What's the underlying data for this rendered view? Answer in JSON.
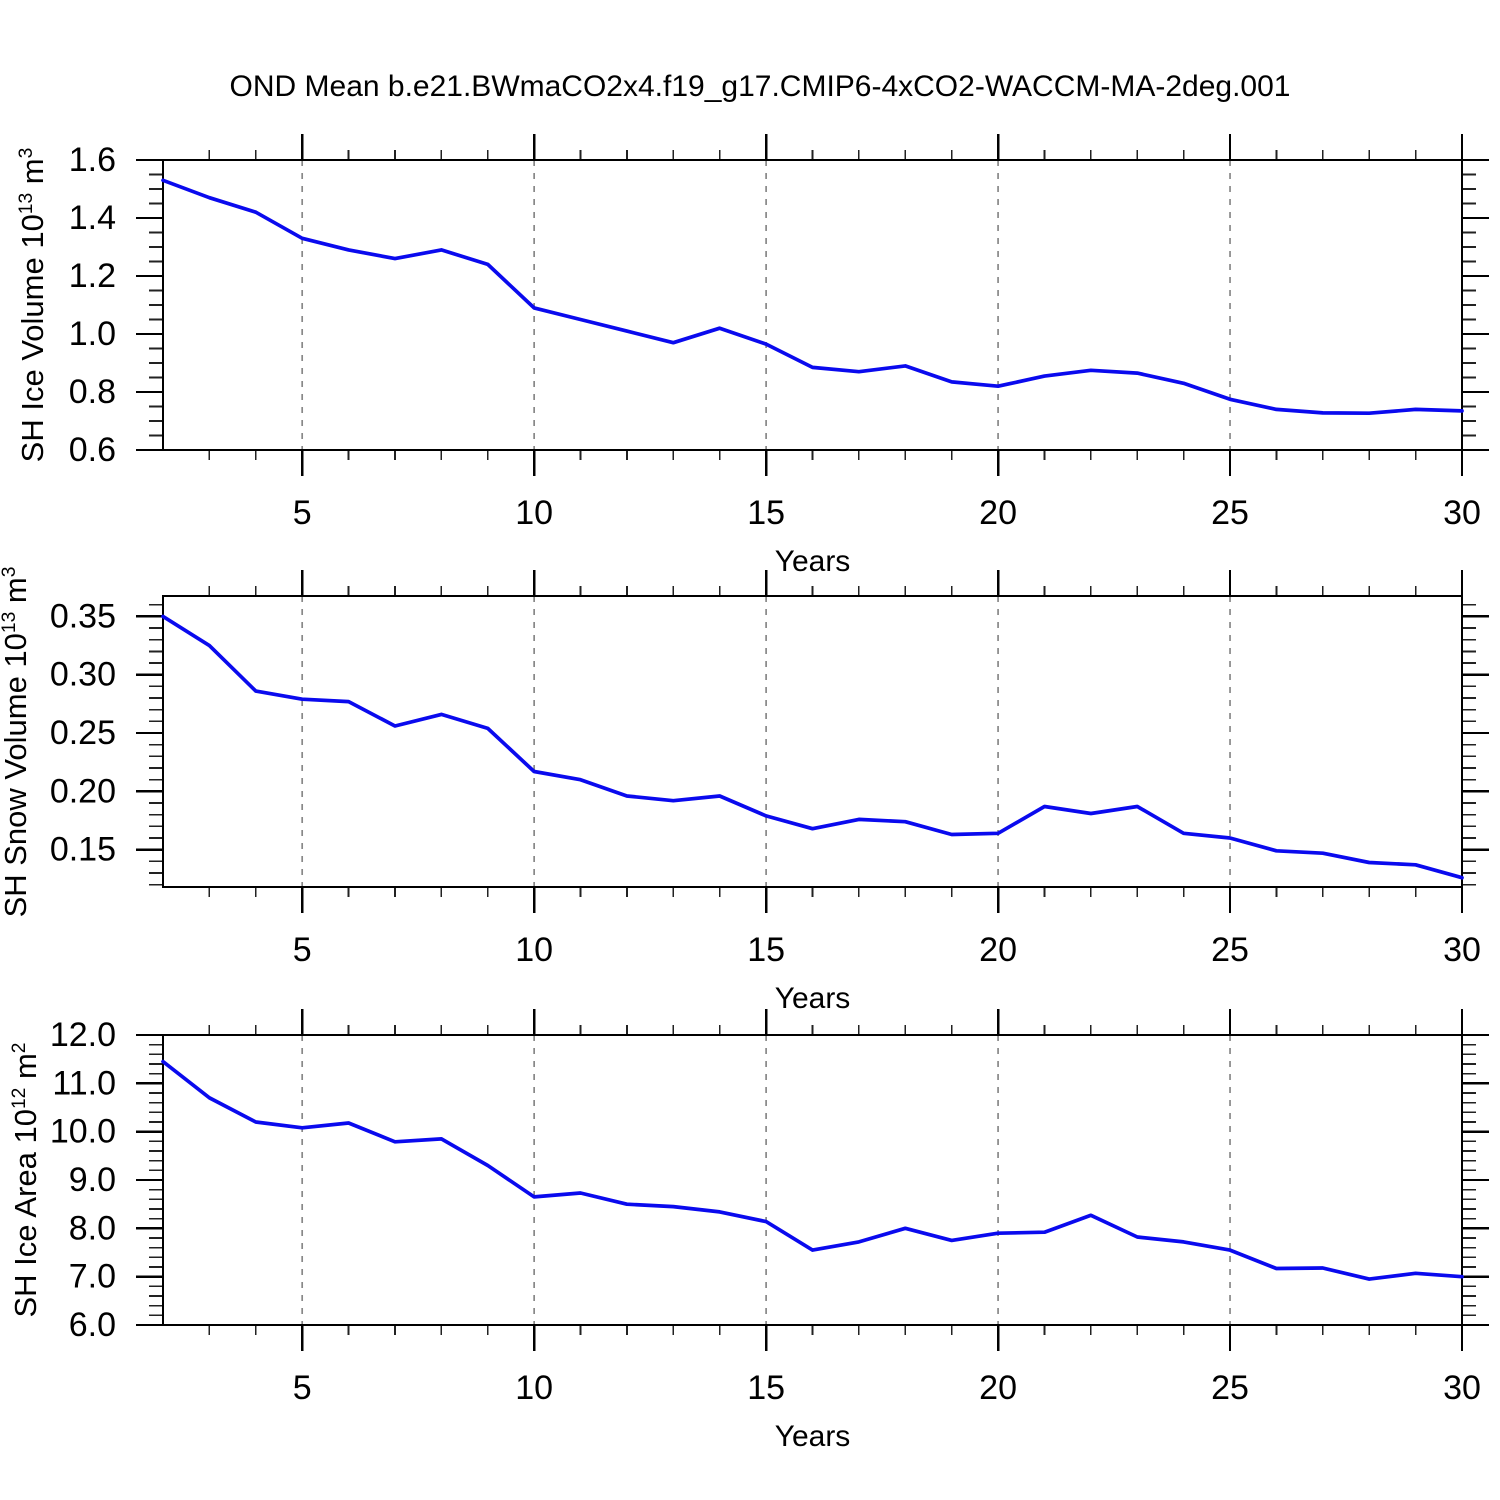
{
  "title": "OND Mean b.e21.BWmaCO2x4.f19_g17.CMIP6-4xCO2-WACCM-MA-2deg.001",
  "colors": {
    "line": "#0a0aee",
    "frame": "#000000",
    "grid": "#888888",
    "text": "#000000",
    "background": "#ffffff"
  },
  "chart_data": [
    {
      "type": "line",
      "panel": "sh-ice-volume",
      "ylabel": {
        "main": "SH Ice Volume 10",
        "exp": "13",
        "unit": " m",
        "unit_exp": "3"
      },
      "xlabel": "Years",
      "xlim": [
        2,
        30
      ],
      "xticks_major": [
        5,
        10,
        15,
        20,
        25,
        30
      ],
      "xminor_step": 1,
      "grid_x": [
        5,
        10,
        15,
        20,
        25
      ],
      "ylim": [
        0.6,
        1.6
      ],
      "yticks_major": [
        0.6,
        0.8,
        1.0,
        1.2,
        1.4,
        1.6
      ],
      "yminor_step": 0.05,
      "ytick_decimals": 1,
      "x": [
        2,
        3,
        4,
        5,
        6,
        7,
        8,
        9,
        10,
        11,
        12,
        13,
        14,
        15,
        16,
        17,
        18,
        19,
        20,
        21,
        22,
        23,
        24,
        25,
        26,
        27,
        28,
        29,
        30
      ],
      "values": [
        1.53,
        1.47,
        1.42,
        1.33,
        1.29,
        1.26,
        1.29,
        1.24,
        1.09,
        1.05,
        1.01,
        0.97,
        1.02,
        0.965,
        0.885,
        0.87,
        0.89,
        0.835,
        0.82,
        0.855,
        0.875,
        0.865,
        0.83,
        0.775,
        0.74,
        0.728,
        0.727,
        0.74,
        0.735
      ]
    },
    {
      "type": "line",
      "panel": "sh-snow-volume",
      "ylabel": {
        "main": "SH Snow Volume 10",
        "exp": "13",
        "unit": " m",
        "unit_exp": "3"
      },
      "xlabel": "Years",
      "xlim": [
        2,
        30
      ],
      "xticks_major": [
        5,
        10,
        15,
        20,
        25,
        30
      ],
      "xminor_step": 1,
      "grid_x": [
        5,
        10,
        15,
        20,
        25
      ],
      "ylim": [
        0.118,
        0.3675
      ],
      "yticks_major": [
        0.15,
        0.2,
        0.25,
        0.3,
        0.35
      ],
      "yminor_step": 0.01,
      "ytick_decimals": 2,
      "x": [
        2,
        3,
        4,
        5,
        6,
        7,
        8,
        9,
        10,
        11,
        12,
        13,
        14,
        15,
        16,
        17,
        18,
        19,
        20,
        21,
        22,
        23,
        24,
        25,
        26,
        27,
        28,
        29,
        30
      ],
      "values": [
        0.35,
        0.325,
        0.286,
        0.279,
        0.277,
        0.256,
        0.266,
        0.254,
        0.217,
        0.21,
        0.196,
        0.192,
        0.196,
        0.179,
        0.168,
        0.176,
        0.174,
        0.163,
        0.164,
        0.187,
        0.181,
        0.187,
        0.164,
        0.16,
        0.149,
        0.147,
        0.139,
        0.137,
        0.126
      ]
    },
    {
      "type": "line",
      "panel": "sh-ice-area",
      "ylabel": {
        "main": "SH Ice Area 10",
        "exp": "12",
        "unit": " m",
        "unit_exp": "2"
      },
      "xlabel": "Years",
      "xlim": [
        2,
        30
      ],
      "xticks_major": [
        5,
        10,
        15,
        20,
        25,
        30
      ],
      "xminor_step": 1,
      "grid_x": [
        5,
        10,
        15,
        20,
        25
      ],
      "ylim": [
        6.0,
        12.0
      ],
      "yticks_major": [
        6.0,
        7.0,
        8.0,
        9.0,
        10.0,
        11.0,
        12.0
      ],
      "yminor_step": 0.2,
      "ytick_decimals": 1,
      "x": [
        2,
        3,
        4,
        5,
        6,
        7,
        8,
        9,
        10,
        11,
        12,
        13,
        14,
        15,
        16,
        17,
        18,
        19,
        20,
        21,
        22,
        23,
        24,
        25,
        26,
        27,
        28,
        29,
        30
      ],
      "values": [
        11.45,
        10.7,
        10.2,
        10.08,
        10.18,
        9.79,
        9.85,
        9.3,
        8.65,
        8.73,
        8.5,
        8.45,
        8.34,
        8.14,
        7.55,
        7.72,
        8.0,
        7.75,
        7.9,
        7.92,
        8.27,
        7.82,
        7.72,
        7.55,
        7.17,
        7.18,
        6.95,
        7.07,
        7.0
      ]
    }
  ]
}
